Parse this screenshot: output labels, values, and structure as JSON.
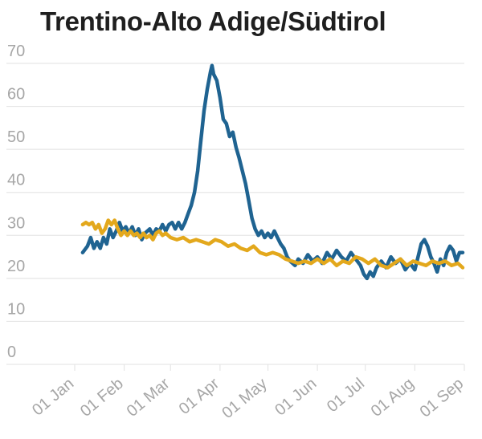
{
  "title": "Trentino-Alto Adige/Südtirol",
  "colors": {
    "series_a": "#1f6391",
    "series_b": "#e3a81c",
    "grid": "#e6e6e6",
    "ticks": "#a6a6a6"
  },
  "chart_data": {
    "type": "line",
    "title": "Trentino-Alto Adige/Südtirol",
    "xlabel": "",
    "ylabel": "",
    "ylim": [
      0,
      70
    ],
    "xlim": [
      "2020-01-01",
      "2020-09-01"
    ],
    "yticks": [
      "0",
      "10",
      "20",
      "30",
      "40",
      "50",
      "60",
      "70"
    ],
    "xticks": [
      "01 Jan",
      "01 Feb",
      "01 Mar",
      "01 Apr",
      "01 May",
      "01 Jun",
      "01 Jul",
      "01 Aug",
      "01 Sep"
    ],
    "xtick_dates": [
      "2020-01-01",
      "2020-02-01",
      "2020-03-01",
      "2020-04-01",
      "2020-05-01",
      "2020-06-01",
      "2020-07-01",
      "2020-08-01",
      "2020-09-01"
    ],
    "grid": true,
    "legend": "none",
    "series": [
      {
        "color": "#1f6391",
        "points": [
          [
            "2020-01-06",
            26
          ],
          [
            "2020-01-09",
            27.5
          ],
          [
            "2020-01-11",
            29.5
          ],
          [
            "2020-01-13",
            27
          ],
          [
            "2020-01-15",
            28.5
          ],
          [
            "2020-01-17",
            27
          ],
          [
            "2020-01-19",
            29.5
          ],
          [
            "2020-01-21",
            28
          ],
          [
            "2020-01-23",
            31.5
          ],
          [
            "2020-01-25",
            29.5
          ],
          [
            "2020-01-27",
            31
          ],
          [
            "2020-01-29",
            33
          ],
          [
            "2020-01-31",
            31
          ],
          [
            "2020-02-02",
            32
          ],
          [
            "2020-02-04",
            30.5
          ],
          [
            "2020-02-06",
            32
          ],
          [
            "2020-02-08",
            30
          ],
          [
            "2020-02-10",
            31.5
          ],
          [
            "2020-02-12",
            29
          ],
          [
            "2020-02-14",
            30.5
          ],
          [
            "2020-02-17",
            31.5
          ],
          [
            "2020-02-19",
            30
          ],
          [
            "2020-02-21",
            31.5
          ],
          [
            "2020-02-23",
            31
          ],
          [
            "2020-02-25",
            32.5
          ],
          [
            "2020-02-27",
            31
          ],
          [
            "2020-02-29",
            32.5
          ],
          [
            "2020-03-02",
            33
          ],
          [
            "2020-03-04",
            31.5
          ],
          [
            "2020-03-06",
            33
          ],
          [
            "2020-03-08",
            31.5
          ],
          [
            "2020-03-10",
            33
          ],
          [
            "2020-03-12",
            35
          ],
          [
            "2020-03-14",
            37
          ],
          [
            "2020-03-16",
            40
          ],
          [
            "2020-03-18",
            45
          ],
          [
            "2020-03-20",
            52
          ],
          [
            "2020-03-22",
            59
          ],
          [
            "2020-03-24",
            64
          ],
          [
            "2020-03-26",
            68
          ],
          [
            "2020-03-27",
            69.5
          ],
          [
            "2020-03-28",
            67.5
          ],
          [
            "2020-03-30",
            66
          ],
          [
            "2020-04-01",
            62
          ],
          [
            "2020-04-03",
            57
          ],
          [
            "2020-04-05",
            56
          ],
          [
            "2020-04-07",
            53
          ],
          [
            "2020-04-09",
            54
          ],
          [
            "2020-04-11",
            50.5
          ],
          [
            "2020-04-13",
            48
          ],
          [
            "2020-04-15",
            45
          ],
          [
            "2020-04-17",
            42
          ],
          [
            "2020-04-19",
            38
          ],
          [
            "2020-04-21",
            34
          ],
          [
            "2020-04-23",
            31.5
          ],
          [
            "2020-04-25",
            30
          ],
          [
            "2020-04-27",
            31
          ],
          [
            "2020-04-29",
            29.5
          ],
          [
            "2020-05-01",
            30.5
          ],
          [
            "2020-05-03",
            29.5
          ],
          [
            "2020-05-05",
            31
          ],
          [
            "2020-05-07",
            29.5
          ],
          [
            "2020-05-09",
            28
          ],
          [
            "2020-05-11",
            27
          ],
          [
            "2020-05-13",
            25
          ],
          [
            "2020-05-15",
            24
          ],
          [
            "2020-05-18",
            23
          ],
          [
            "2020-05-20",
            24.5
          ],
          [
            "2020-05-23",
            23.5
          ],
          [
            "2020-05-26",
            25.5
          ],
          [
            "2020-05-29",
            24
          ],
          [
            "2020-06-01",
            25
          ],
          [
            "2020-06-04",
            23.5
          ],
          [
            "2020-06-07",
            26
          ],
          [
            "2020-06-10",
            24.5
          ],
          [
            "2020-06-13",
            26.5
          ],
          [
            "2020-06-16",
            25
          ],
          [
            "2020-06-19",
            24
          ],
          [
            "2020-06-22",
            26
          ],
          [
            "2020-06-25",
            24.5
          ],
          [
            "2020-06-28",
            23
          ],
          [
            "2020-06-30",
            21
          ],
          [
            "2020-07-02",
            20
          ],
          [
            "2020-07-04",
            21.5
          ],
          [
            "2020-07-06",
            20.5
          ],
          [
            "2020-07-08",
            22.5
          ],
          [
            "2020-07-11",
            24
          ],
          [
            "2020-07-14",
            22.5
          ],
          [
            "2020-07-17",
            25
          ],
          [
            "2020-07-20",
            23.5
          ],
          [
            "2020-07-23",
            24.5
          ],
          [
            "2020-07-26",
            22
          ],
          [
            "2020-07-29",
            23.5
          ],
          [
            "2020-08-01",
            22
          ],
          [
            "2020-08-03",
            25
          ],
          [
            "2020-08-05",
            28
          ],
          [
            "2020-08-07",
            29
          ],
          [
            "2020-08-09",
            27.5
          ],
          [
            "2020-08-11",
            25
          ],
          [
            "2020-08-13",
            23.5
          ],
          [
            "2020-08-15",
            21.5
          ],
          [
            "2020-08-17",
            24.5
          ],
          [
            "2020-08-19",
            23
          ],
          [
            "2020-08-21",
            26
          ],
          [
            "2020-08-23",
            27.5
          ],
          [
            "2020-08-25",
            26.5
          ],
          [
            "2020-08-27",
            24
          ],
          [
            "2020-08-29",
            26
          ],
          [
            "2020-08-31",
            26
          ]
        ]
      },
      {
        "color": "#e3a81c",
        "points": [
          [
            "2020-01-06",
            32.5
          ],
          [
            "2020-01-08",
            33
          ],
          [
            "2020-01-10",
            32.5
          ],
          [
            "2020-01-12",
            33
          ],
          [
            "2020-01-14",
            31.5
          ],
          [
            "2020-01-16",
            32.5
          ],
          [
            "2020-01-18",
            30.5
          ],
          [
            "2020-01-20",
            31.5
          ],
          [
            "2020-01-22",
            33.5
          ],
          [
            "2020-01-24",
            32.5
          ],
          [
            "2020-01-26",
            33.5
          ],
          [
            "2020-01-28",
            31.5
          ],
          [
            "2020-01-30",
            30
          ],
          [
            "2020-02-01",
            31
          ],
          [
            "2020-02-03",
            30
          ],
          [
            "2020-02-05",
            31
          ],
          [
            "2020-02-07",
            30
          ],
          [
            "2020-02-09",
            30.5
          ],
          [
            "2020-02-11",
            29.5
          ],
          [
            "2020-02-13",
            30.5
          ],
          [
            "2020-02-15",
            29.5
          ],
          [
            "2020-02-17",
            30
          ],
          [
            "2020-02-19",
            29
          ],
          [
            "2020-02-21",
            30.5
          ],
          [
            "2020-02-23",
            31
          ],
          [
            "2020-02-25",
            30
          ],
          [
            "2020-02-27",
            30.5
          ],
          [
            "2020-03-01",
            29.5
          ],
          [
            "2020-03-05",
            29
          ],
          [
            "2020-03-09",
            29.5
          ],
          [
            "2020-03-13",
            28.5
          ],
          [
            "2020-03-17",
            29
          ],
          [
            "2020-03-21",
            28.5
          ],
          [
            "2020-03-25",
            28
          ],
          [
            "2020-03-29",
            29
          ],
          [
            "2020-04-02",
            28.5
          ],
          [
            "2020-04-06",
            27.5
          ],
          [
            "2020-04-10",
            28
          ],
          [
            "2020-04-14",
            27
          ],
          [
            "2020-04-18",
            26.5
          ],
          [
            "2020-04-22",
            27.5
          ],
          [
            "2020-04-26",
            26
          ],
          [
            "2020-04-30",
            25.5
          ],
          [
            "2020-05-04",
            26
          ],
          [
            "2020-05-08",
            25.5
          ],
          [
            "2020-05-12",
            24.5
          ],
          [
            "2020-05-16",
            24
          ],
          [
            "2020-05-20",
            23.5
          ],
          [
            "2020-05-24",
            24
          ],
          [
            "2020-05-28",
            23.5
          ],
          [
            "2020-06-01",
            24.5
          ],
          [
            "2020-06-05",
            23.5
          ],
          [
            "2020-06-09",
            24.5
          ],
          [
            "2020-06-13",
            23
          ],
          [
            "2020-06-17",
            24
          ],
          [
            "2020-06-21",
            23.5
          ],
          [
            "2020-06-25",
            25
          ],
          [
            "2020-06-29",
            24.5
          ],
          [
            "2020-07-03",
            23.5
          ],
          [
            "2020-07-07",
            24.5
          ],
          [
            "2020-07-11",
            23
          ],
          [
            "2020-07-15",
            22.5
          ],
          [
            "2020-07-19",
            23.5
          ],
          [
            "2020-07-23",
            24.5
          ],
          [
            "2020-07-27",
            23
          ],
          [
            "2020-07-31",
            24
          ],
          [
            "2020-08-04",
            23.5
          ],
          [
            "2020-08-08",
            23
          ],
          [
            "2020-08-12",
            24
          ],
          [
            "2020-08-16",
            23.5
          ],
          [
            "2020-08-20",
            24
          ],
          [
            "2020-08-24",
            23
          ],
          [
            "2020-08-28",
            23.5
          ],
          [
            "2020-08-31",
            22.5
          ]
        ]
      }
    ]
  }
}
